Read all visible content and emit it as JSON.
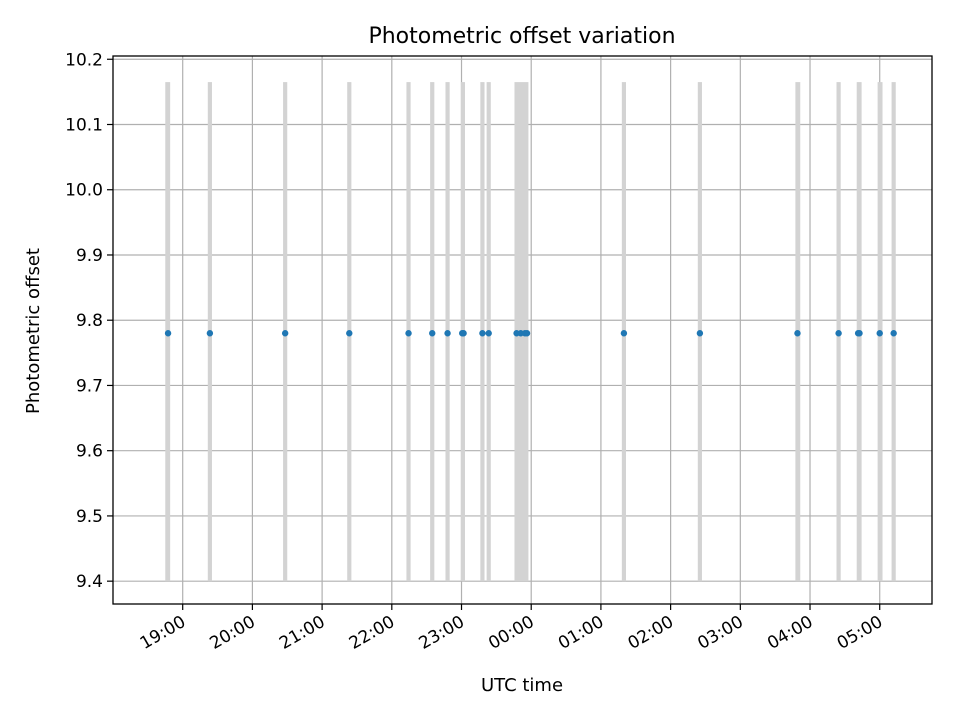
{
  "chart_data": {
    "type": "scatter",
    "title": "Photometric offset variation",
    "xlabel": "UTC time",
    "ylabel": "Photometric offset",
    "x_unit": "hours UTC (continuing past midnight as 24+)",
    "xlim": [
      18.0,
      29.75
    ],
    "ylim": [
      9.365,
      10.205
    ],
    "yticks": [
      9.4,
      9.5,
      9.6,
      9.7,
      9.8,
      9.9,
      10.0,
      10.1,
      10.2
    ],
    "ytick_labels": [
      "9.4",
      "9.5",
      "9.6",
      "9.7",
      "9.8",
      "9.9",
      "10.0",
      "10.1",
      "10.2"
    ],
    "xticks": [
      19,
      20,
      21,
      22,
      23,
      24,
      25,
      26,
      27,
      28,
      29
    ],
    "xtick_labels": [
      "19:00",
      "20:00",
      "21:00",
      "22:00",
      "23:00",
      "00:00",
      "01:00",
      "02:00",
      "03:00",
      "04:00",
      "05:00"
    ],
    "grid": true,
    "band_range": [
      9.4,
      10.165
    ],
    "band_color": "#d3d3d3",
    "point_color": "#1f77b4",
    "bands": [
      {
        "start": 18.75,
        "end": 18.82
      },
      {
        "start": 19.36,
        "end": 19.42
      },
      {
        "start": 20.44,
        "end": 20.5
      },
      {
        "start": 21.36,
        "end": 21.42
      },
      {
        "start": 22.21,
        "end": 22.27
      },
      {
        "start": 22.55,
        "end": 22.61
      },
      {
        "start": 22.77,
        "end": 22.83
      },
      {
        "start": 22.99,
        "end": 23.05
      },
      {
        "start": 23.27,
        "end": 23.33
      },
      {
        "start": 23.36,
        "end": 23.42
      },
      {
        "start": 23.76,
        "end": 23.96
      },
      {
        "start": 25.3,
        "end": 25.36
      },
      {
        "start": 26.39,
        "end": 26.45
      },
      {
        "start": 27.79,
        "end": 27.86
      },
      {
        "start": 28.38,
        "end": 28.44
      },
      {
        "start": 28.67,
        "end": 28.74
      },
      {
        "start": 28.97,
        "end": 29.04
      },
      {
        "start": 29.17,
        "end": 29.23
      }
    ],
    "series": [
      {
        "x": [
          18.79,
          19.39,
          20.47,
          21.39,
          22.24,
          22.58,
          22.8,
          23.01,
          23.03,
          23.3,
          23.39,
          23.79,
          23.85,
          23.91,
          23.94,
          25.33,
          26.42,
          27.82,
          28.41,
          28.69,
          28.71,
          29.0,
          29.2
        ],
        "y": [
          9.78,
          9.78,
          9.78,
          9.78,
          9.78,
          9.78,
          9.78,
          9.78,
          9.78,
          9.78,
          9.78,
          9.78,
          9.78,
          9.78,
          9.78,
          9.78,
          9.78,
          9.78,
          9.78,
          9.78,
          9.78,
          9.78,
          9.78
        ]
      }
    ]
  }
}
